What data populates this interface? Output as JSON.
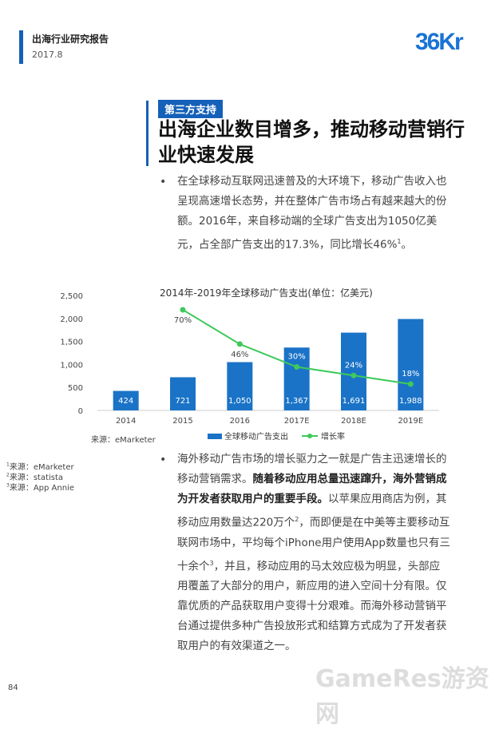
{
  "header": {
    "title": "出海行业研究报告",
    "date": "2017.8"
  },
  "logo": {
    "text": "36Kr"
  },
  "section_tag": "第三方支持",
  "headline": "出海企业数目增多，推动移动营销行业快速发展",
  "para1": {
    "text": "在全球移动互联网迅速普及的大环境下，移动广告收入也呈现高速增长态势，并在整体广告市场占有越来越大的份额。2016年，来自移动端的全球广告支出为1050亿美元，占全部广告支出的17.3%，同比增长46%",
    "sup": "1",
    "end": "。"
  },
  "chart_data": {
    "type": "bar",
    "title": "2014年-2019年全球移动广告支出(单位：亿美元)",
    "categories": [
      "2014",
      "2015",
      "2016",
      "2017E",
      "2018E",
      "2019E"
    ],
    "series": [
      {
        "name": "全球移动广告支出",
        "type": "bar",
        "values": [
          424,
          721,
          1050,
          1367,
          1691,
          1988
        ],
        "labels": [
          "424",
          "721",
          "1,050",
          "1,367",
          "1,691",
          "1,988"
        ],
        "color": "#1a73c7"
      },
      {
        "name": "增长率",
        "type": "line",
        "values": [
          null,
          70,
          46,
          30,
          24,
          18
        ],
        "labels": [
          "",
          "70%",
          "46%",
          "30%",
          "24%",
          "18%"
        ],
        "color": "#3ec95a"
      }
    ],
    "ylim": [
      0,
      2500
    ],
    "yticks": [
      "0",
      "500",
      "1,000",
      "1,500",
      "2,000",
      "2,500"
    ],
    "legend": "bottom",
    "grid": false
  },
  "source": "来源：eMarketer",
  "footnotes": [
    {
      "n": "1",
      "text": "来源：eMarketer"
    },
    {
      "n": "2",
      "text": "来源：statista"
    },
    {
      "n": "3",
      "text": "来源：App Annie"
    }
  ],
  "para2": {
    "t1": "海外移动广告市场的增长驱力之一就是广告主迅速增长的移动营销需求。",
    "bold": "随着移动应用总量迅速蹿升，海外营销成为开发者获取用户的重要手段。",
    "t2": "以苹果应用商店为例，其移动应用数量达220万个",
    "s2": "2",
    "t3": "，而即便是在中美等主要移动互联网市场中，平均每个iPhone用户使用App数量也只有三十余个",
    "s3": "3",
    "t4": "，并且，移动应用的马太效应极为明显，头部应用覆盖了大部分的用户，新应用的进入空间十分有限。仅靠优质的产品获取用户变得十分艰难。而海外移动营销平台通过提供多种广告投放形式和结算方式成为了开发者获取用户的有效渠道之一。"
  },
  "page_number": "84",
  "watermark": "GameRes游资网",
  "bullet_char": "•"
}
